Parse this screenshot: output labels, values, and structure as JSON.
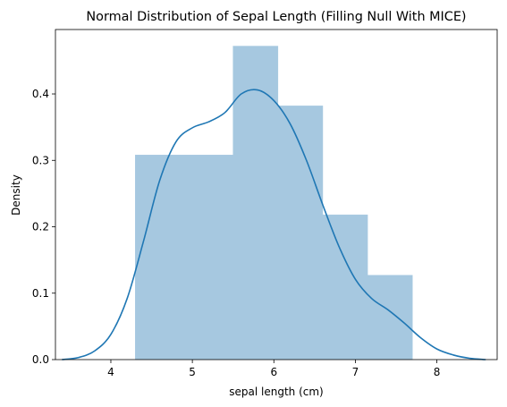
{
  "chart_data": {
    "type": "bar",
    "title": "Normal Distribution of Sepal Length (Filling Null With MICE)",
    "xlabel": "sepal length (cm)",
    "ylabel": "Density",
    "xlim": [
      3.32,
      8.74
    ],
    "ylim": [
      0,
      0.497
    ],
    "xticks": [
      4,
      5,
      6,
      7,
      8
    ],
    "yticks": [
      0.0,
      0.1,
      0.2,
      0.3,
      0.4
    ],
    "ytick_labels": [
      "0.0",
      "0.1",
      "0.2",
      "0.3",
      "0.4"
    ],
    "grid": false,
    "colors": {
      "histogram": "#a6c8e0",
      "kde": "#1f77b4"
    },
    "series": [
      {
        "kind": "histogram",
        "bins": [
          {
            "x0": 4.3,
            "x1": 5.5,
            "density": 0.308
          },
          {
            "x0": 5.5,
            "x1": 6.05,
            "density": 0.472
          },
          {
            "x0": 6.05,
            "x1": 6.6,
            "density": 0.382
          },
          {
            "x0": 6.6,
            "x1": 7.15,
            "density": 0.218
          },
          {
            "x0": 7.15,
            "x1": 7.7,
            "density": 0.127
          }
        ]
      },
      {
        "kind": "kde",
        "x": [
          3.4,
          3.6,
          3.8,
          4.0,
          4.2,
          4.4,
          4.6,
          4.8,
          5.0,
          5.2,
          5.4,
          5.6,
          5.8,
          6.0,
          6.2,
          6.4,
          6.6,
          6.8,
          7.0,
          7.2,
          7.4,
          7.6,
          7.8,
          8.0,
          8.2,
          8.4,
          8.6
        ],
        "y": [
          0.0,
          0.003,
          0.013,
          0.038,
          0.092,
          0.178,
          0.27,
          0.328,
          0.349,
          0.358,
          0.372,
          0.4,
          0.406,
          0.39,
          0.355,
          0.3,
          0.233,
          0.17,
          0.121,
          0.092,
          0.075,
          0.055,
          0.033,
          0.016,
          0.007,
          0.002,
          0.0
        ]
      }
    ]
  }
}
